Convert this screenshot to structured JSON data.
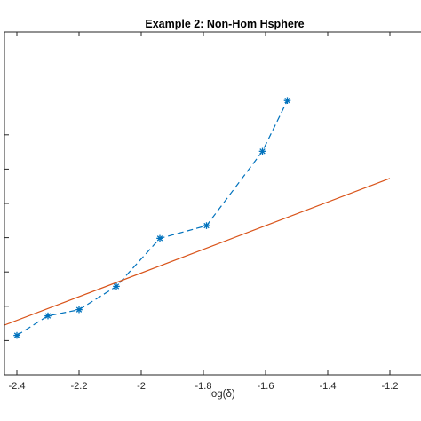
{
  "chart_data": {
    "type": "line",
    "title": "Example 2: Non-Hom Hsphere",
    "xlabel": "log(δ)",
    "ylabel": "",
    "xlim": [
      -2.44,
      -1.1
    ],
    "ylim": [
      0,
      10
    ],
    "x_ticks": [
      -2.4,
      -2.2,
      -2,
      -1.8,
      -1.6,
      -1.4,
      -1.2
    ],
    "x_tick_labels": [
      "-2.4",
      "-2.2",
      "-2",
      "-1.8",
      "-1.6",
      "-1.4",
      "-1.2"
    ],
    "y_ticks": [
      1,
      2,
      3,
      4,
      5,
      6,
      7
    ],
    "grid": false,
    "legend": "none",
    "series": [
      {
        "style": "dashed-with-asterisk-markers",
        "color": "#0072BD",
        "x": [
          -2.4,
          -2.3,
          -2.2,
          -2.08,
          -1.94,
          -1.79,
          -1.61,
          -1.53
        ],
        "y": [
          1.15,
          1.72,
          1.9,
          2.58,
          3.98,
          4.35,
          6.52,
          8.0
        ]
      },
      {
        "style": "solid",
        "color": "#D95319",
        "x": [
          -2.44,
          -1.2
        ],
        "y": [
          1.45,
          5.73
        ]
      }
    ]
  }
}
